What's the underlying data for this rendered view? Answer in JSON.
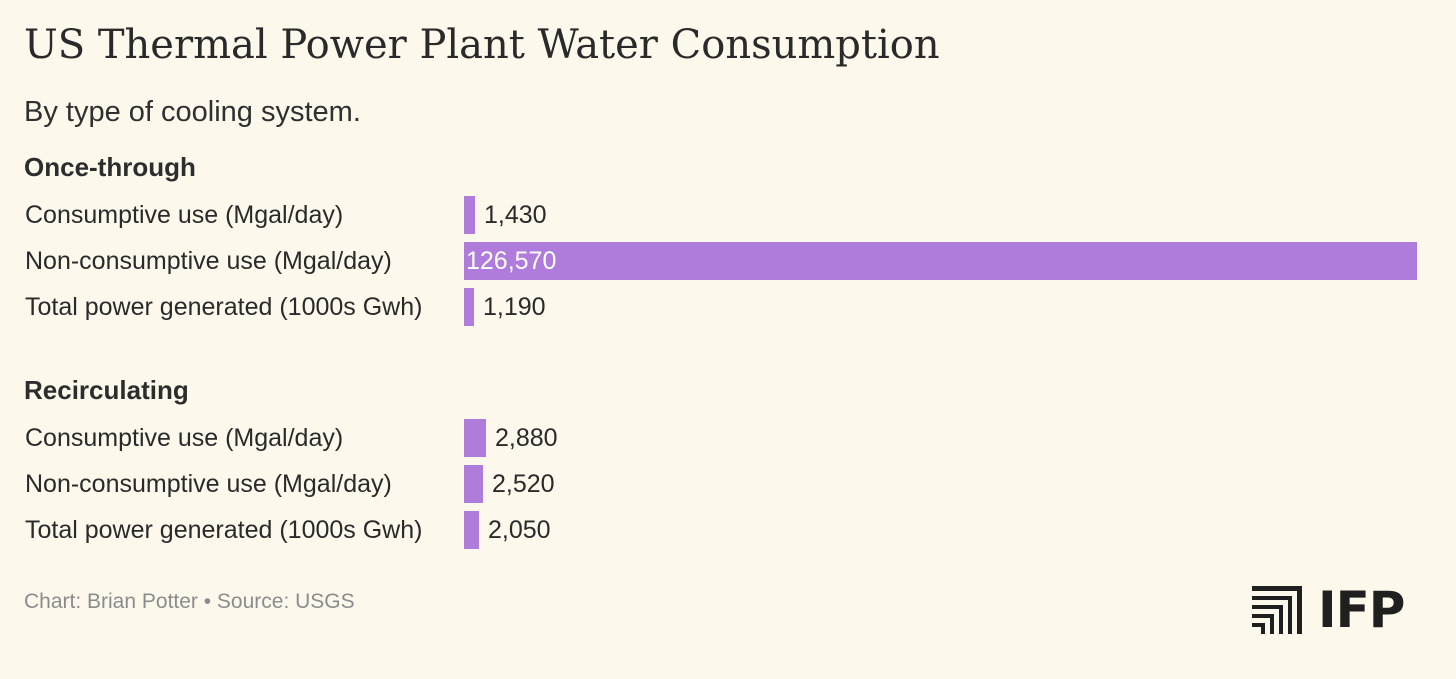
{
  "chart_data": {
    "type": "bar",
    "orientation": "horizontal",
    "title": "US Thermal Power Plant Water Consumption",
    "subtitle": "By type of cooling system.",
    "groups": [
      {
        "name": "Once-through",
        "rows": [
          {
            "label": "Consumptive use (Mgal/day)",
            "value": 1430,
            "display": "1,430"
          },
          {
            "label": "Non-consumptive use (Mgal/day)",
            "value": 126570,
            "display": "126,570"
          },
          {
            "label": "Total power generated (1000s Gwh)",
            "value": 1190,
            "display": "1,190"
          }
        ]
      },
      {
        "name": "Recirculating",
        "rows": [
          {
            "label": "Consumptive use (Mgal/day)",
            "value": 2880,
            "display": "2,880"
          },
          {
            "label": "Non-consumptive use (Mgal/day)",
            "value": 2520,
            "display": "2,520"
          },
          {
            "label": "Total power generated (1000s Gwh)",
            "value": 2050,
            "display": "2,050"
          }
        ]
      }
    ],
    "xlim": [
      0,
      126570
    ],
    "bar_color": "#b07cdc",
    "footer": "Chart: Brian Potter • Source: USGS"
  },
  "brand": {
    "logo_text": "IFP"
  }
}
